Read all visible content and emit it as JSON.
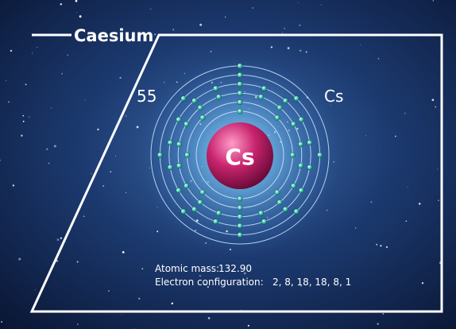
{
  "header": {
    "title": "Caesium"
  },
  "element": {
    "atomic_number": "55",
    "symbol": "Cs",
    "nucleus_label": "Cs"
  },
  "info": {
    "atomic_mass_label": "Atomic mass:",
    "atomic_mass": "132.90",
    "configuration_label": "Electron configuration:",
    "configuration": "2, 8, 18, 18, 8, 1"
  }
}
